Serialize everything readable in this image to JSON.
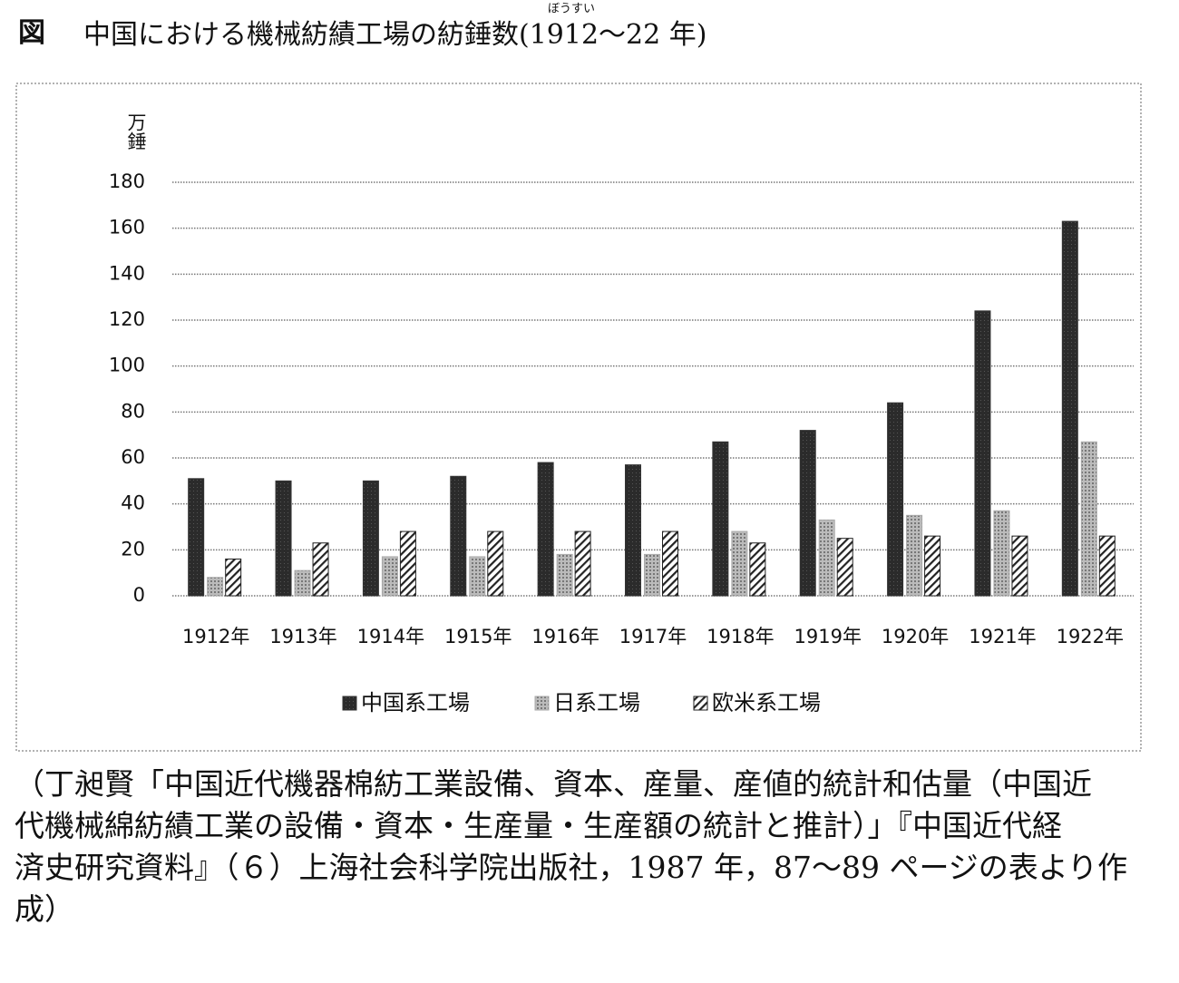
{
  "chart_data": {
    "type": "bar",
    "figure_label": "図",
    "title": "中国における機械紡績工場の紡錘数(1912～22 年)",
    "ruby": "ぼうすい",
    "y_label": "万錘",
    "categories": [
      "1912年",
      "1913年",
      "1914年",
      "1915年",
      "1916年",
      "1917年",
      "1918年",
      "1919年",
      "1920年",
      "1921年",
      "1922年"
    ],
    "series": [
      {
        "name": "中国系工場",
        "color": "#333333",
        "fill_style": "solid",
        "values": [
          51,
          50,
          50,
          52,
          58,
          57,
          67,
          72,
          84,
          124,
          163
        ]
      },
      {
        "name": "日系工場",
        "color": "#aaaaaa",
        "fill_style": "dotted",
        "values": [
          8,
          11,
          17,
          17,
          18,
          18,
          28,
          33,
          35,
          37,
          67
        ]
      },
      {
        "name": "欧米系工場",
        "color": "#222222",
        "fill_style": "hatched",
        "values": [
          16,
          23,
          28,
          28,
          28,
          28,
          23,
          25,
          26,
          26,
          26
        ]
      }
    ],
    "ylim": [
      0,
      180
    ],
    "yticks": [
      0,
      20,
      40,
      60,
      80,
      100,
      120,
      140,
      160,
      180
    ],
    "grid": true,
    "legend": "bottom",
    "source": [
      "（丁昶賢「中国近代機器棉紡工業設備、資本、産量、産値的統計和估量（中国近",
      "代機械綿紡績工業の設備・資本・生産量・生産額の統計と推計）」『中国近代経",
      "済史研究資料』（６）上海社会科学院出版社，1987 年，87～89 ページの表より作",
      "成）"
    ]
  }
}
